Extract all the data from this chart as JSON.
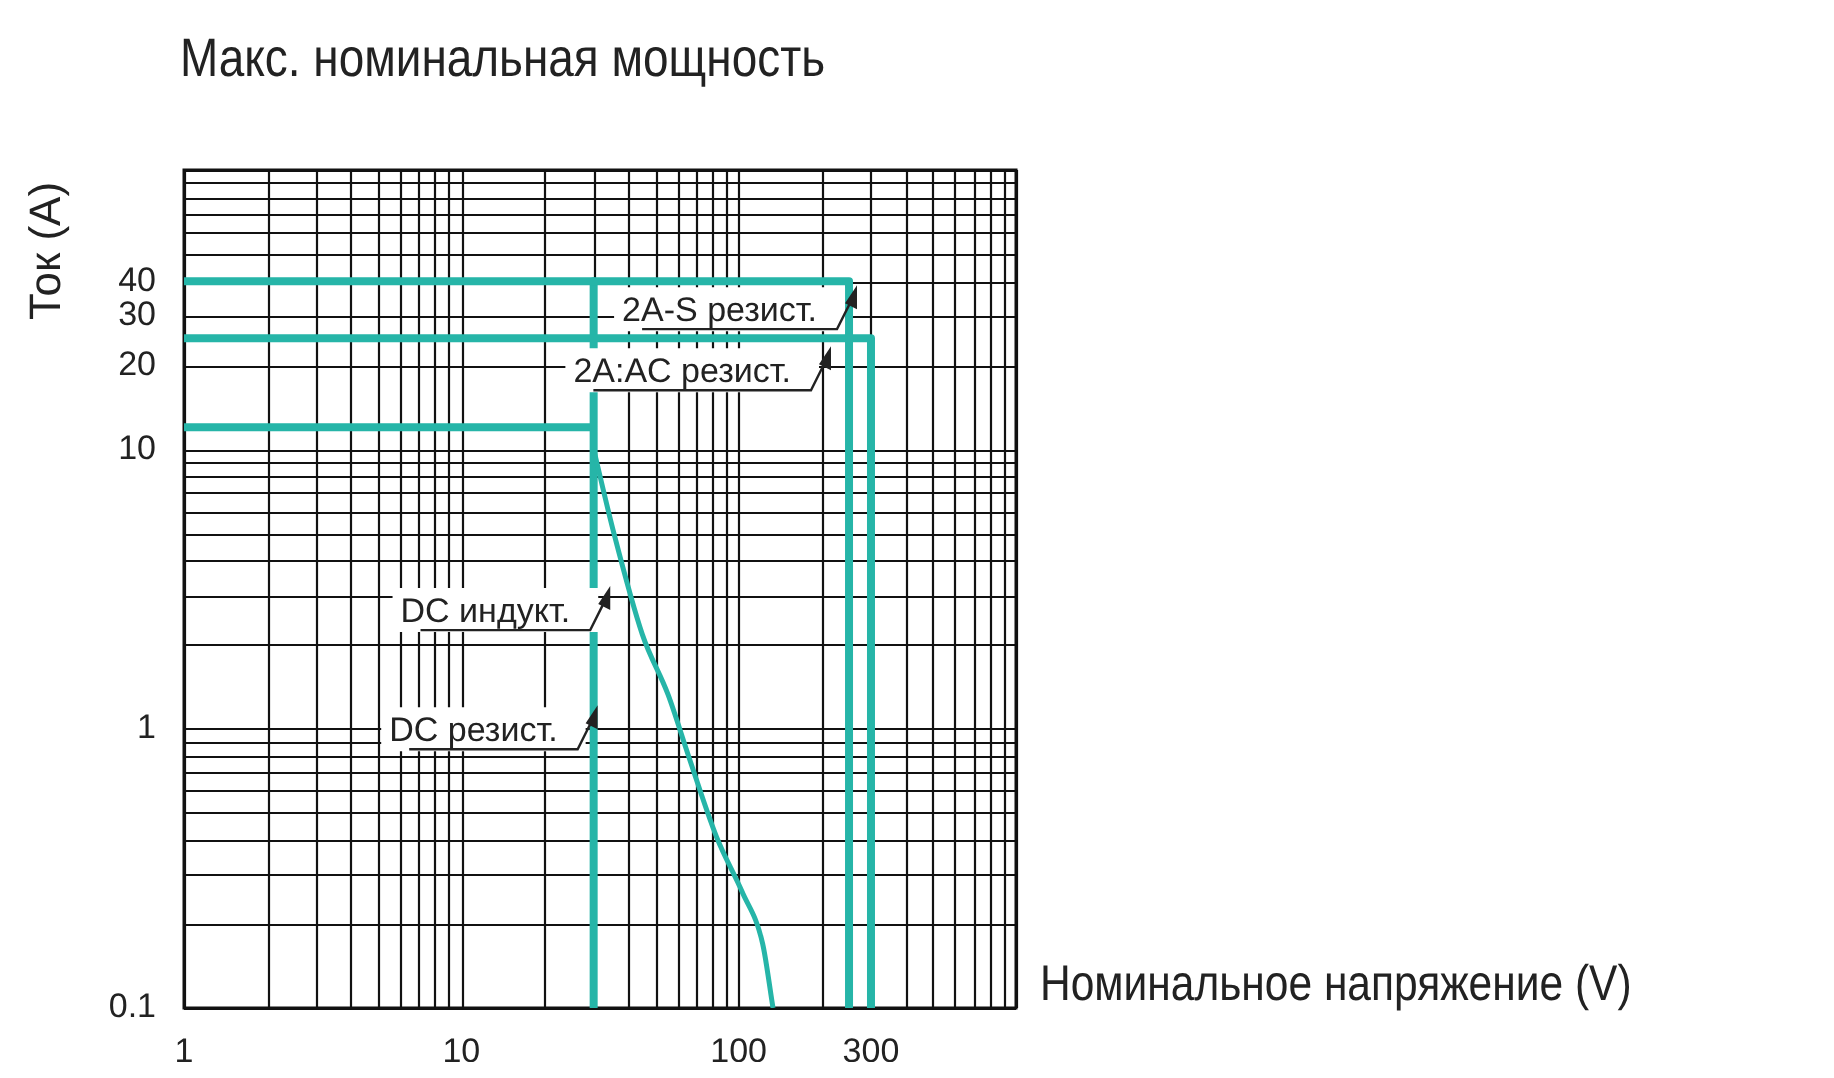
{
  "chart_data": {
    "type": "line",
    "title": "Макс. номинальная мощность",
    "xlabel": "Номинальное напряжение (V)",
    "ylabel": "Ток (A)",
    "log": "xy",
    "grid": true,
    "legend": false,
    "marker": "none",
    "line_style": "solid",
    "xlim": [
      1,
      1000
    ],
    "xticks": [
      1,
      10,
      100,
      300
    ],
    "ylim": [
      0.1,
      100
    ],
    "yticks": [
      0.1,
      1,
      10,
      20,
      30,
      40
    ],
    "series": [
      {
        "name": "2A-S резист.",
        "color": "#26b5a8",
        "x": [
          1,
          250,
          250
        ],
        "values": [
          40,
          40,
          0.1
        ]
      },
      {
        "name": "2A:AC резист.",
        "color": "#26b5a8",
        "x": [
          1,
          300,
          300
        ],
        "values": [
          25,
          25,
          0.1
        ]
      },
      {
        "name": "DC индукт.",
        "color": "#26b5a8",
        "x": [
          30,
          35.5,
          44.9,
          55.7,
          65.9,
          83.2,
          103,
          122,
          133
        ],
        "values": [
          10,
          5,
          2.18,
          1.32,
          0.8,
          0.41,
          0.26,
          0.17,
          0.1
        ]
      },
      {
        "name": "DC резист.",
        "color": "#26b5a8",
        "x": [
          1,
          30,
          30,
          30
        ],
        "values": [
          12,
          12,
          40,
          0.1
        ]
      }
    ]
  }
}
